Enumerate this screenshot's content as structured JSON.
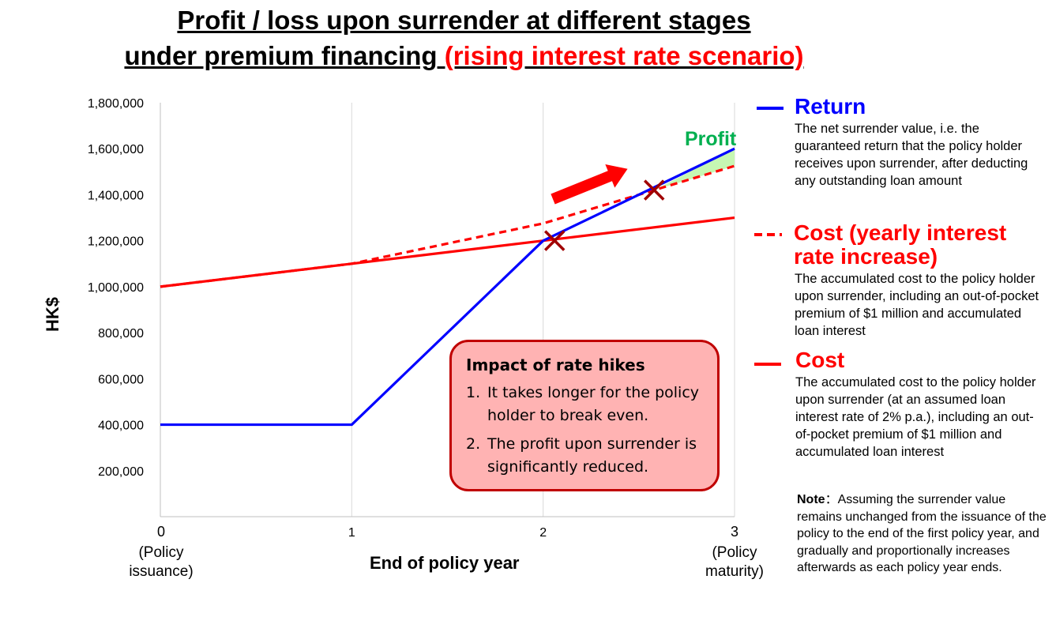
{
  "title": {
    "line1": "Profit / loss upon surrender at different stages",
    "line2_main": "under premium financing",
    "line2_red": " (rising interest rate scenario)"
  },
  "chart_data": {
    "type": "line",
    "title": "Profit / loss upon surrender at different stages under premium financing (rising interest rate scenario)",
    "xlabel": "End of policy year",
    "ylabel": "HK$",
    "x": [
      0,
      1,
      2,
      3
    ],
    "x_tick_labels": [
      "0",
      "1",
      "2",
      "3"
    ],
    "x_tick_sublabels": [
      "(Policy\nissuance)",
      "",
      "",
      "(Policy\nmaturity)"
    ],
    "y_ticks": [
      200000,
      400000,
      600000,
      800000,
      1000000,
      1200000,
      1400000,
      1600000,
      1800000
    ],
    "y_tick_labels": [
      "200,000",
      "400,000",
      "600,000",
      "800,000",
      "1,000,000",
      "1,200,000",
      "1,400,000",
      "1,600,000",
      "1,800,000"
    ],
    "ylim": [
      0,
      1800000
    ],
    "xlim": [
      0,
      3
    ],
    "grid": "vertical",
    "series": [
      {
        "name": "Return",
        "style": "solid",
        "color": "#0000ff",
        "values": [
          400000,
          400000,
          1200000,
          1600000
        ]
      },
      {
        "name": "Cost (yearly interest rate increase)",
        "style": "dashed",
        "color": "#ff0000",
        "values": [
          1000000,
          1100000,
          1275000,
          1525000
        ]
      },
      {
        "name": "Cost",
        "style": "solid",
        "color": "#ff0000",
        "values": [
          1000000,
          1100000,
          1200000,
          1300000
        ]
      }
    ],
    "markers": [
      {
        "x": 2.06,
        "y": 1200000
      },
      {
        "x": 2.58,
        "y": 1420000
      }
    ],
    "annotations": [
      {
        "text": "Profit",
        "color": "#00b050",
        "x": 2.74,
        "y": 1660000
      }
    ]
  },
  "legend": [
    {
      "label": "Return",
      "color": "#0000ff",
      "style": "solid",
      "desc": "The net surrender value, i.e. the guaranteed return that the policy holder receives upon surrender, after deducting any outstanding loan amount"
    },
    {
      "label": "Cost (yearly interest rate increase)",
      "color": "#ff0000",
      "style": "dashed",
      "desc": "The accumulated cost to the policy holder upon surrender, including an out-of-pocket premium of $1 million and accumulated loan interest"
    },
    {
      "label": "Cost",
      "color": "#ff0000",
      "style": "solid",
      "desc": "The accumulated cost to the policy holder upon surrender (at an assumed loan interest rate of 2% p.a.), including an out-of-pocket premium of $1 million and accumulated loan interest"
    }
  ],
  "callout": {
    "title": "Impact of rate hikes",
    "items": [
      {
        "num": "1.",
        "text": "It takes longer for the policy holder to break even."
      },
      {
        "num": "2.",
        "text": "The profit upon surrender is significantly reduced."
      }
    ]
  },
  "note": {
    "label": "Note",
    "sep": "：",
    "text": "Assuming the surrender value remains unchanged from the issuance of the policy to the end of the first policy year, and gradually and proportionally increases afterwards as each policy year ends."
  }
}
